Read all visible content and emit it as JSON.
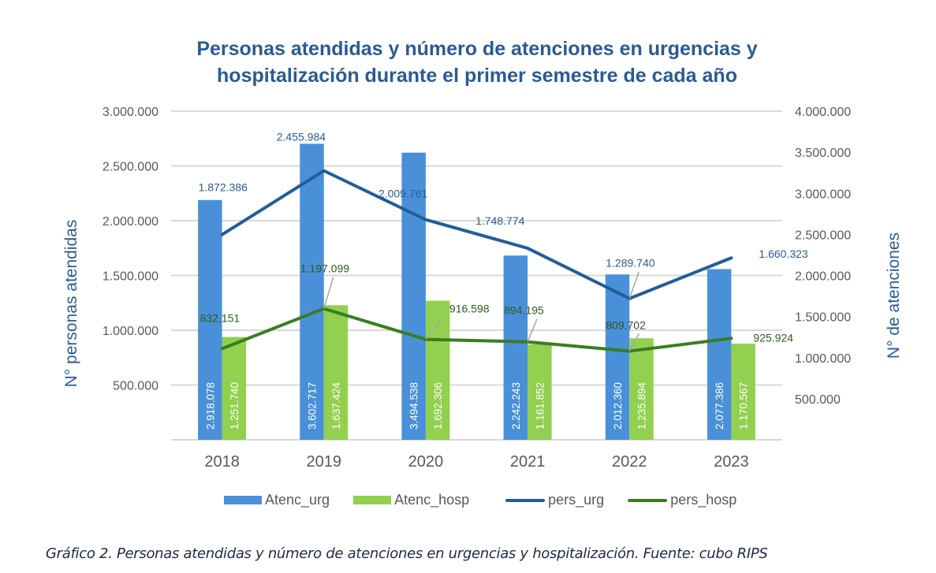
{
  "chart_data": {
    "type": "bar",
    "title_lines": [
      "Personas atendidas y número de atenciones en urgencias y",
      "hospitalización durante el primer semestre de cada año"
    ],
    "categories": [
      "2018",
      "2019",
      "2020",
      "2021",
      "2022",
      "2023"
    ],
    "series": [
      {
        "name": "Atenc_urg",
        "type": "bar",
        "axis": "right",
        "color": "#4a90d9",
        "label_color": "#ffffff",
        "values": [
          2918078,
          3602717,
          3494538,
          2242243,
          2012360,
          2077386
        ],
        "labels": [
          "2.918.078",
          "3.602.717",
          "3.494.538",
          "2.242.243",
          "2.012.360",
          "2.077.386"
        ]
      },
      {
        "name": "Atenc_hosp",
        "type": "bar",
        "axis": "right",
        "color": "#92d050",
        "label_color": "#ffffff",
        "values": [
          1251740,
          1637424,
          1692306,
          1161852,
          1235894,
          1170567
        ],
        "labels": [
          "1.251.740",
          "1.637.424",
          "1.692.306",
          "1.161.852",
          "1.235.894",
          "1.170.567"
        ]
      },
      {
        "name": "pers_urg",
        "type": "line",
        "axis": "left",
        "color": "#215e99",
        "label_color": "#2a5b92",
        "values": [
          1872386,
          2455984,
          2009761,
          1748774,
          1289740,
          1660323
        ],
        "labels": [
          "1.872.386",
          "2.455.984",
          "2.009.761",
          "1.748.774",
          "1.289.740",
          "1.660.323"
        ]
      },
      {
        "name": "pers_hosp",
        "type": "line",
        "axis": "left",
        "color": "#3a7d22",
        "label_color": "#2e5a1f",
        "values": [
          832151,
          1197099,
          916598,
          894195,
          809702,
          925924
        ],
        "labels": [
          "832.151",
          "1.197.099",
          "916.598",
          "894.195",
          "809.702",
          "925.924"
        ]
      }
    ],
    "left_axis": {
      "title": "N° personas atendidas",
      "range": [
        0,
        3000000
      ],
      "ticks": [
        500000,
        1000000,
        1500000,
        2000000,
        2500000,
        3000000
      ],
      "tick_labels": [
        "500.000",
        "1.000.000",
        "1.500.000",
        "2.000.000",
        "2.500.000",
        "3.000.000"
      ]
    },
    "right_axis": {
      "title": "N° de atenciones",
      "range": [
        0,
        4000000
      ],
      "ticks": [
        500000,
        1000000,
        1500000,
        2000000,
        2500000,
        3000000,
        3500000,
        4000000
      ],
      "tick_labels": [
        "500.000",
        "1.000.000",
        "1.500.000",
        "2.000.000",
        "2.500.000",
        "3.000.000",
        "3.500.000",
        "4.000.000"
      ]
    },
    "grid": true,
    "legend_position": "bottom"
  },
  "caption": "Gráfico 2. Personas atendidas y número de atenciones en urgencias y hospitalización.  Fuente: cubo RIPS"
}
